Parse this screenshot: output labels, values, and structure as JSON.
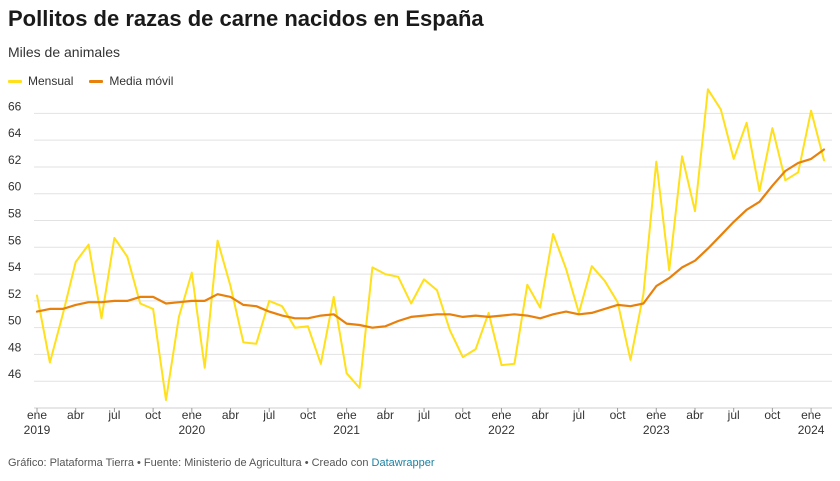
{
  "title": "Pollitos de razas de carne nacidos en España",
  "subtitle": "Miles de animales",
  "footer": {
    "prefix": "Gráfico: Plataforma Tierra • Fuente: Ministerio de Agricultura • Creado con ",
    "link": "Datawrapper"
  },
  "colors": {
    "mensual": "#ffe01b",
    "media": "#e8810c"
  },
  "chart_data": {
    "type": "line",
    "title": "Pollitos de razas de carne nacidos en España",
    "subtitle": "Miles de animales",
    "ylim": [
      44,
      67
    ],
    "y_ticks": [
      46,
      48,
      50,
      52,
      54,
      56,
      58,
      60,
      62,
      64,
      66
    ],
    "x_ticks": [
      {
        "i": 0,
        "label": "ene",
        "year": "2019"
      },
      {
        "i": 3,
        "label": "abr"
      },
      {
        "i": 6,
        "label": "jul"
      },
      {
        "i": 9,
        "label": "oct"
      },
      {
        "i": 12,
        "label": "ene",
        "year": "2020"
      },
      {
        "i": 15,
        "label": "abr"
      },
      {
        "i": 18,
        "label": "jul"
      },
      {
        "i": 21,
        "label": "oct"
      },
      {
        "i": 24,
        "label": "ene",
        "year": "2021"
      },
      {
        "i": 27,
        "label": "abr"
      },
      {
        "i": 30,
        "label": "jul"
      },
      {
        "i": 33,
        "label": "oct"
      },
      {
        "i": 36,
        "label": "ene",
        "year": "2022"
      },
      {
        "i": 39,
        "label": "abr"
      },
      {
        "i": 42,
        "label": "jul"
      },
      {
        "i": 45,
        "label": "oct"
      },
      {
        "i": 48,
        "label": "ene",
        "year": "2023"
      },
      {
        "i": 51,
        "label": "abr"
      },
      {
        "i": 54,
        "label": "jul"
      },
      {
        "i": 57,
        "label": "oct"
      },
      {
        "i": 60,
        "label": "ene",
        "year": "2024"
      }
    ],
    "legend_placement": "top-left",
    "series": [
      {
        "name": "Mensual",
        "values": [
          52.4,
          47.4,
          51.0,
          54.9,
          56.2,
          50.7,
          56.7,
          55.3,
          51.8,
          51.4,
          44.6,
          50.8,
          54.1,
          47.0,
          56.5,
          53.1,
          48.9,
          48.8,
          52.0,
          51.6,
          50.0,
          50.1,
          47.3,
          52.3,
          46.6,
          45.5,
          54.5,
          54.0,
          53.8,
          51.8,
          53.6,
          52.8,
          49.8,
          47.8,
          48.4,
          51.1,
          47.2,
          47.3,
          53.2,
          51.5,
          57.0,
          54.4,
          51.1,
          54.6,
          53.5,
          51.9,
          47.6,
          52.5,
          62.4,
          54.3,
          62.8,
          58.7,
          67.8,
          66.3,
          62.6,
          65.3,
          60.2,
          64.9,
          61.0,
          61.6,
          66.2,
          62.5
        ]
      },
      {
        "name": "Media móvil",
        "values": [
          51.2,
          51.4,
          51.4,
          51.7,
          51.9,
          51.9,
          52.0,
          52.0,
          52.3,
          52.3,
          51.8,
          51.9,
          52.0,
          52.0,
          52.5,
          52.3,
          51.7,
          51.6,
          51.2,
          50.9,
          50.7,
          50.7,
          50.9,
          51.0,
          50.3,
          50.2,
          50.0,
          50.1,
          50.5,
          50.8,
          50.9,
          51.0,
          51.0,
          50.8,
          50.9,
          50.8,
          50.9,
          51.0,
          50.9,
          50.7,
          51.0,
          51.2,
          51.0,
          51.1,
          51.4,
          51.7,
          51.6,
          51.8,
          53.1,
          53.7,
          54.5,
          55.0,
          55.9,
          56.9,
          57.9,
          58.8,
          59.4,
          60.6,
          61.7,
          62.3,
          62.6,
          63.3
        ]
      }
    ]
  }
}
